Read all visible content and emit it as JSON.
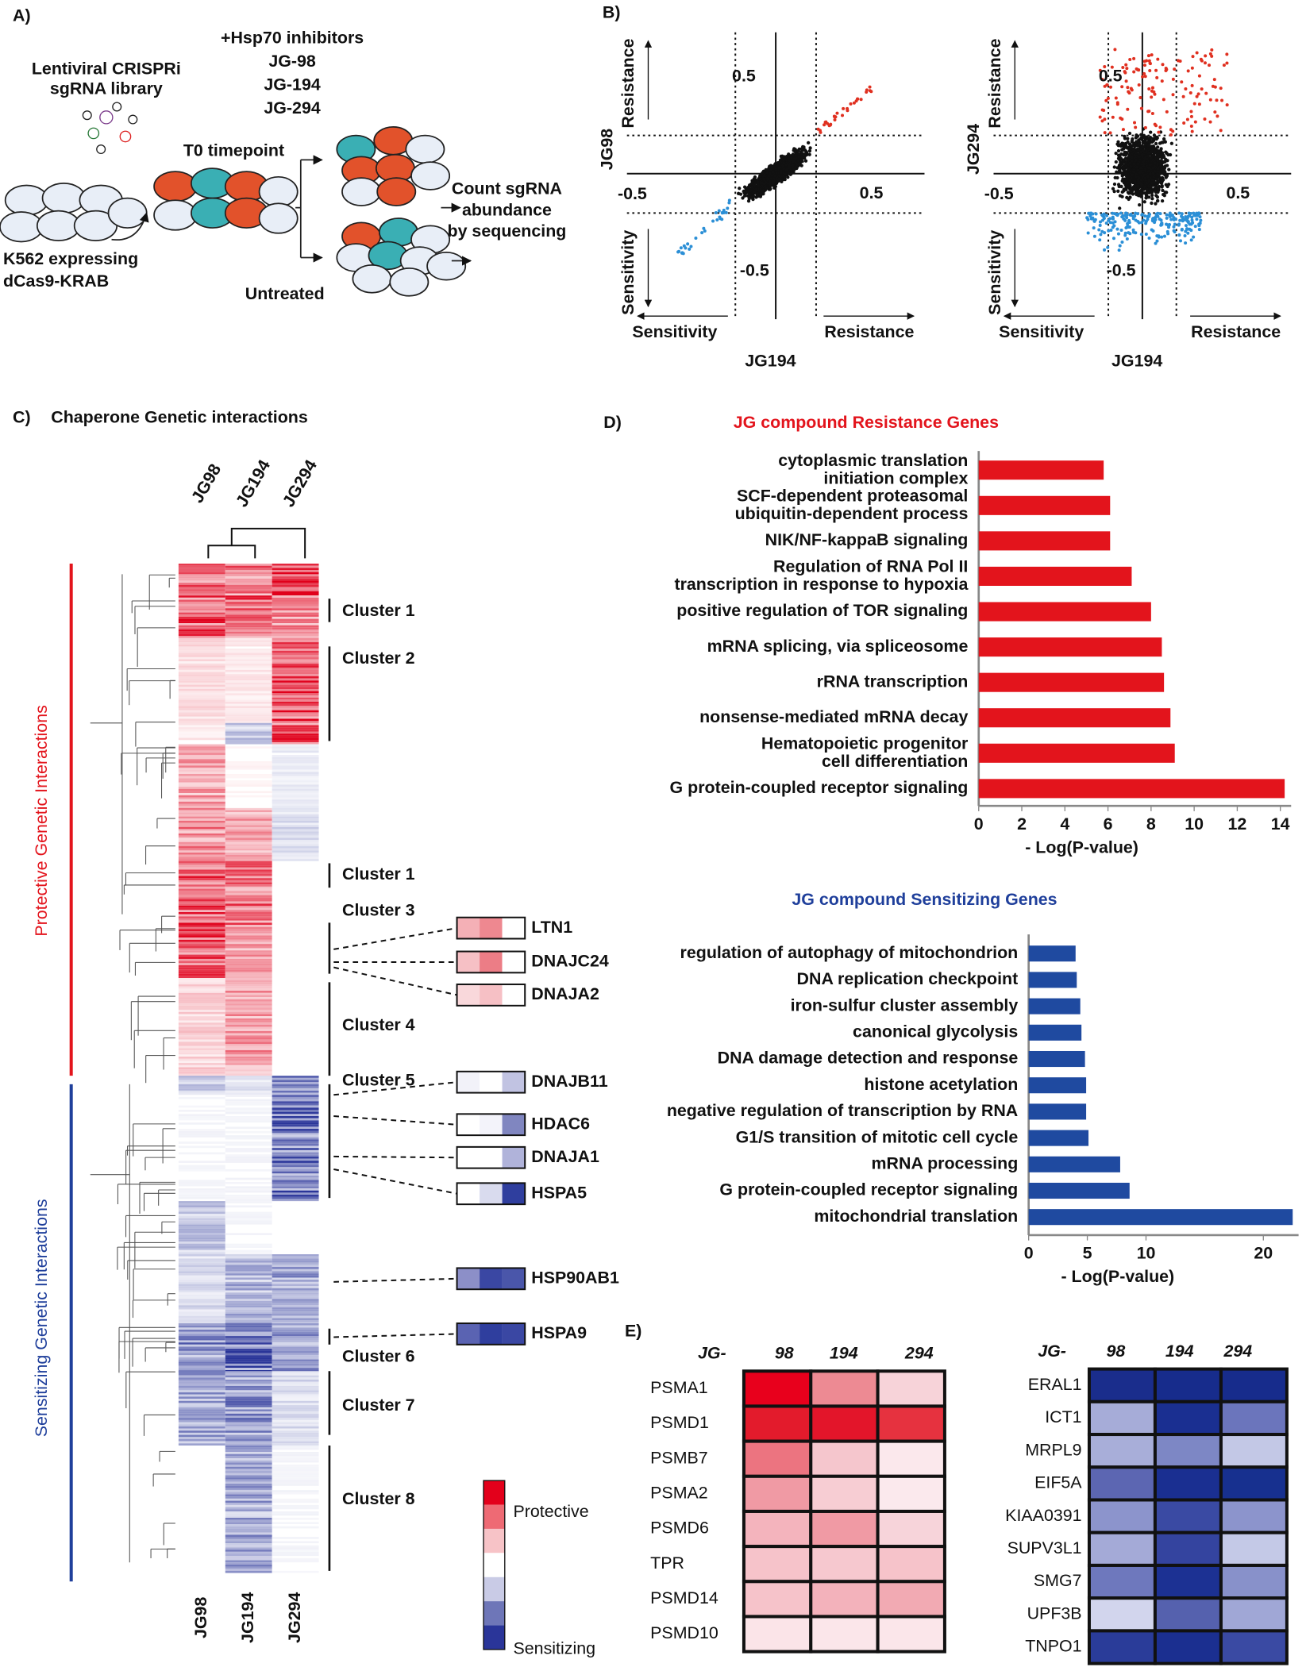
{
  "panel_a": {
    "label": "A)",
    "library": [
      "Lentiviral CRISPRi",
      "sgRNA library"
    ],
    "inhibitors": [
      "+Hsp70 inhibitors",
      "JG-98",
      "JG-194",
      "JG-294"
    ],
    "timepoint": "T0 timepoint",
    "count": [
      "Count sgRNA",
      "abundance",
      "by sequencing"
    ],
    "cells": [
      "K562 expressing",
      "dCas9-KRAB"
    ],
    "untreated": "Untreated"
  },
  "panel_b": {
    "label": "B)",
    "plots": [
      {
        "y_label": "JG98",
        "x_label": "JG194",
        "tick_labels": [
          "0.5",
          "-0.5",
          "0.5",
          "-0.5"
        ],
        "up": "Resistance",
        "down": "Sensitivity",
        "left": "Sensitivity",
        "right": "Resistance"
      },
      {
        "y_label": "JG294",
        "x_label": "JG194",
        "tick_labels": [
          "0.5",
          "-0.5",
          "0.5",
          "-0.5"
        ],
        "up": "Resistance",
        "down": "Sensitivity",
        "left": "Sensitivity",
        "right": "Resistance"
      }
    ]
  },
  "panel_c": {
    "label": "C)",
    "title": "Chaperone Genetic interactions",
    "columns": [
      "JG98",
      "JG194",
      "JG294"
    ],
    "protective": "Protective Genetic  Interactions",
    "sensitizing": "Sensitizing Genetic  Interactions",
    "clusters": [
      "Cluster 1",
      "Cluster 2",
      "Cluster 1",
      "Cluster 3",
      "Cluster 4",
      "Cluster 5",
      "Cluster 6",
      "Cluster 7",
      "Cluster 8"
    ],
    "genes": [
      {
        "name": "LTN1",
        "colors": [
          "#f4b0b6",
          "#ee8890",
          "#ffffff"
        ]
      },
      {
        "name": "DNAJC24",
        "colors": [
          "#f6c0c5",
          "#ec7d86",
          "#ffffff"
        ]
      },
      {
        "name": "DNAJA2",
        "colors": [
          "#f9d8db",
          "#f6c0c5",
          "#ffffff"
        ]
      },
      {
        "name": "DNAJB11",
        "colors": [
          "#f2f2f9",
          "#ffffff",
          "#c1c3e2"
        ]
      },
      {
        "name": "HDAC6",
        "colors": [
          "#ffffff",
          "#f3f3fa",
          "#8086c0"
        ]
      },
      {
        "name": "DNAJA1",
        "colors": [
          "#ffffff",
          "#ffffff",
          "#b0b3da"
        ]
      },
      {
        "name": "HSPA5",
        "colors": [
          "#ffffff",
          "#d9dbee",
          "#2f3e9e"
        ]
      },
      {
        "name": "HSP90AB1",
        "colors": [
          "#8c8fc8",
          "#3a47a3",
          "#4a56aa"
        ]
      },
      {
        "name": "HSPA9",
        "colors": [
          "#5a63b2",
          "#2f3e9e",
          "#3a47a3"
        ]
      }
    ],
    "legend": [
      "Protective",
      "Sensitizing"
    ],
    "legend_colors": [
      "#e3001b",
      "#ee6a74",
      "#f7c3c7",
      "#ffffff",
      "#c9cbe6",
      "#6e76b8",
      "#2a3599"
    ]
  },
  "chart_data": [
    {
      "type": "barh",
      "title": "JG  compound Resistance Genes",
      "color": "#e3141c",
      "title_color": "#e3141c",
      "x_label": "- Log(P-value)",
      "categories": [
        "cytoplasmic translation\ninitiation complex",
        "SCF-dependent proteasomal\nubiquitin-dependent process",
        "NIK/NF-kappaB signaling",
        "Regulation of RNA Pol  II\ntranscription in response to hypoxia",
        "positive regulation of TOR signaling",
        "mRNA splicing, via spliceosome",
        "rRNA transcription",
        "nonsense-mediated mRNA decay",
        "Hematopoietic progenitor\ncell differentiation",
        "G protein-coupled receptor signaling"
      ],
      "values": [
        5.8,
        6.1,
        6.1,
        7.1,
        8.0,
        8.5,
        8.6,
        8.9,
        9.1,
        14.2
      ],
      "xlim": [
        0,
        14.5
      ],
      "xticks": [
        0,
        2,
        4,
        6,
        8,
        10,
        12,
        14
      ]
    },
    {
      "type": "barh",
      "title": "JG  compound Sensitizing Genes",
      "color": "#1f4aa0",
      "title_color": "#1f3f9b",
      "x_label": "- Log(P-value)",
      "categories": [
        "regulation of autophagy of mitochondrion",
        "DNA replication checkpoint",
        "iron-sulfur cluster assembly",
        "canonical glycolysis",
        "DNA damage detection and response",
        "histone acetylation",
        "negative regulation of transcription by RNA",
        "G1/S transition of mitotic cell cycle",
        "mRNA processing",
        "G protein-coupled receptor signaling",
        "mitochondrial translation"
      ],
      "values": [
        4.0,
        4.1,
        4.4,
        4.5,
        4.8,
        4.9,
        4.9,
        5.1,
        7.8,
        8.6,
        22.5
      ],
      "xlim": [
        0,
        23
      ],
      "xticks": [
        0,
        5,
        10,
        20
      ]
    }
  ],
  "panel_e": {
    "label": "E)",
    "tables": [
      {
        "prefix": "JG-",
        "columns": [
          "98",
          "194",
          "294"
        ],
        "rows": [
          {
            "name": "PSMA1",
            "colors": [
              "#e8001c",
              "#ed8a93",
              "#f7d3d9"
            ]
          },
          {
            "name": "PSMD1",
            "colors": [
              "#e31b2c",
              "#e3152a",
              "#e6323f"
            ]
          },
          {
            "name": "PSMB7",
            "colors": [
              "#ec7480",
              "#f5c6cd",
              "#fbe8ec"
            ]
          },
          {
            "name": "PSMA2",
            "colors": [
              "#f09aa4",
              "#f7cdd3",
              "#fbe9ed"
            ]
          },
          {
            "name": "PSMD6",
            "colors": [
              "#f4b4bd",
              "#f09aa4",
              "#f7d4da"
            ]
          },
          {
            "name": "TPR",
            "colors": [
              "#f6c3ca",
              "#f6c8cf",
              "#f6c3ca"
            ]
          },
          {
            "name": "PSMD14",
            "colors": [
              "#f6c3ca",
              "#f3b2bb",
              "#f2aab3"
            ]
          },
          {
            "name": "PSMD10",
            "colors": [
              "#fbe4e8",
              "#fbe6ea",
              "#fbe6ea"
            ]
          }
        ]
      },
      {
        "prefix": "JG-",
        "columns": [
          "98",
          "194",
          "294"
        ],
        "rows": [
          {
            "name": "ERAL1",
            "colors": [
              "#1a2d8c",
              "#172c8c",
              "#172c8c"
            ]
          },
          {
            "name": "ICT1",
            "colors": [
              "#a6acd8",
              "#1a2f91",
              "#6b75bc"
            ]
          },
          {
            "name": "MRPL9",
            "colors": [
              "#a8aed9",
              "#7d87c5",
              "#c3c8e6"
            ]
          },
          {
            "name": "EIF5A",
            "colors": [
              "#5c66b2",
              "#1a2f91",
              "#17308f"
            ]
          },
          {
            "name": "KIAA0391",
            "colors": [
              "#8c94cc",
              "#3a4aa3",
              "#8c94cc"
            ]
          },
          {
            "name": "SUPV3L1",
            "colors": [
              "#a4aad7",
              "#34449f",
              "#c4c9e7"
            ]
          },
          {
            "name": "SMG7",
            "colors": [
              "#6e78bd",
              "#1c3193",
              "#8891ca"
            ]
          },
          {
            "name": "UPF3B",
            "colors": [
              "#d2d5ed",
              "#5561ae",
              "#a0a7d6"
            ]
          },
          {
            "name": "TNPO1",
            "colors": [
              "#2a3c99",
              "#1b2f90",
              "#3a4aa3"
            ]
          }
        ]
      }
    ]
  }
}
